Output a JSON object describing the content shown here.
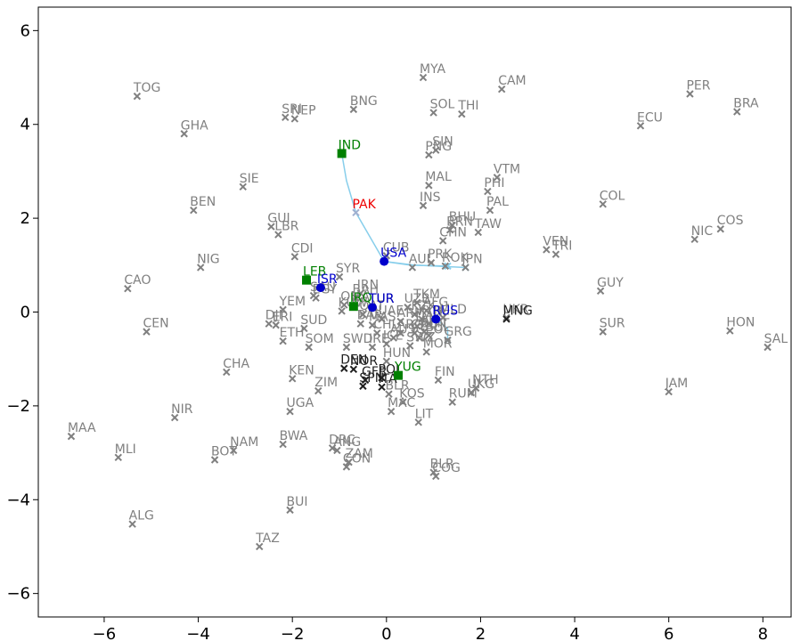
{
  "chart_data": {
    "type": "scatter",
    "title": "",
    "xlabel": "",
    "ylabel": "",
    "xlim": [
      -7.4,
      8.6
    ],
    "ylim": [
      -6.5,
      6.5
    ],
    "xticks": [
      -6,
      -4,
      -2,
      0,
      2,
      4,
      6,
      8
    ],
    "yticks": [
      -6,
      -4,
      -2,
      0,
      2,
      4,
      6
    ],
    "grid": false,
    "colors": {
      "gray": "#808080",
      "dark": "#202020",
      "green": "#008000",
      "blue": "#0000cc",
      "red": "#ee0000",
      "trajectory": "#87ceeb"
    },
    "points": [
      {
        "label": "TOG",
        "x": -5.3,
        "y": 4.6,
        "style": "gray"
      },
      {
        "label": "GHA",
        "x": -4.3,
        "y": 3.8,
        "style": "gray"
      },
      {
        "label": "SRI",
        "x": -2.15,
        "y": 4.15,
        "style": "gray"
      },
      {
        "label": "NEP",
        "x": -1.95,
        "y": 4.12,
        "style": "gray"
      },
      {
        "label": "BNG",
        "x": -0.7,
        "y": 4.32,
        "style": "gray"
      },
      {
        "label": "MYA",
        "x": 0.78,
        "y": 5.0,
        "style": "gray"
      },
      {
        "label": "CAM",
        "x": 2.45,
        "y": 4.75,
        "style": "gray"
      },
      {
        "label": "SOL",
        "x": 1.0,
        "y": 4.25,
        "style": "gray"
      },
      {
        "label": "THI",
        "x": 1.6,
        "y": 4.22,
        "style": "gray"
      },
      {
        "label": "PER",
        "x": 6.45,
        "y": 4.65,
        "style": "gray"
      },
      {
        "label": "BRA",
        "x": 7.45,
        "y": 4.27,
        "style": "gray"
      },
      {
        "label": "ECU",
        "x": 5.4,
        "y": 3.97,
        "style": "gray"
      },
      {
        "label": "SIN",
        "x": 1.05,
        "y": 3.45,
        "style": "gray"
      },
      {
        "label": "PNG",
        "x": 0.9,
        "y": 3.35,
        "style": "gray"
      },
      {
        "label": "VTM",
        "x": 2.35,
        "y": 2.87,
        "style": "gray"
      },
      {
        "label": "MAL",
        "x": 0.9,
        "y": 2.7,
        "style": "gray"
      },
      {
        "label": "PHI",
        "x": 2.15,
        "y": 2.57,
        "style": "gray"
      },
      {
        "label": "SIE",
        "x": -3.05,
        "y": 2.67,
        "style": "gray"
      },
      {
        "label": "INS",
        "x": 0.78,
        "y": 2.27,
        "style": "gray"
      },
      {
        "label": "PAL",
        "x": 2.2,
        "y": 2.17,
        "style": "gray"
      },
      {
        "label": "BEN",
        "x": -4.1,
        "y": 2.17,
        "style": "gray"
      },
      {
        "label": "COL",
        "x": 4.6,
        "y": 2.3,
        "style": "gray"
      },
      {
        "label": "COS",
        "x": 7.1,
        "y": 1.77,
        "style": "gray"
      },
      {
        "label": "NIC",
        "x": 6.55,
        "y": 1.55,
        "style": "gray"
      },
      {
        "label": "BHU",
        "x": 1.4,
        "y": 1.85,
        "style": "gray"
      },
      {
        "label": "BRN",
        "x": 1.35,
        "y": 1.75,
        "style": "gray"
      },
      {
        "label": "TAW",
        "x": 1.95,
        "y": 1.7,
        "style": "gray"
      },
      {
        "label": "GUI",
        "x": -2.45,
        "y": 1.82,
        "style": "gray"
      },
      {
        "label": "LBR",
        "x": -2.3,
        "y": 1.65,
        "style": "gray"
      },
      {
        "label": "CHN",
        "x": 1.2,
        "y": 1.52,
        "style": "gray"
      },
      {
        "label": "VEN",
        "x": 3.4,
        "y": 1.33,
        "style": "gray"
      },
      {
        "label": "TRI",
        "x": 3.6,
        "y": 1.23,
        "style": "gray"
      },
      {
        "label": "CDI",
        "x": -1.95,
        "y": 1.18,
        "style": "gray"
      },
      {
        "label": "CUB",
        "x": 0.0,
        "y": 1.2,
        "style": "gray"
      },
      {
        "label": "AUL",
        "x": 0.55,
        "y": 0.95,
        "style": "gray"
      },
      {
        "label": "PRK",
        "x": 0.95,
        "y": 1.05,
        "style": "gray"
      },
      {
        "label": "ROK",
        "x": 1.25,
        "y": 0.98,
        "style": "gray"
      },
      {
        "label": "NIG",
        "x": -3.95,
        "y": 0.95,
        "style": "gray"
      },
      {
        "label": "SYR",
        "x": -1.0,
        "y": 0.75,
        "style": "gray"
      },
      {
        "label": "CAO",
        "x": -5.5,
        "y": 0.5,
        "style": "gray"
      },
      {
        "label": "GUY",
        "x": 4.55,
        "y": 0.45,
        "style": "gray"
      },
      {
        "label": "SAU",
        "x": -1.55,
        "y": 0.35,
        "style": "gray"
      },
      {
        "label": "EGY",
        "x": -1.5,
        "y": 0.3,
        "style": "gray"
      },
      {
        "label": "IRN",
        "x": -0.55,
        "y": 0.4,
        "style": "gray"
      },
      {
        "label": "BAH",
        "x": -0.65,
        "y": 0.3,
        "style": "gray"
      },
      {
        "label": "OMA",
        "x": -0.9,
        "y": 0.15,
        "style": "gray"
      },
      {
        "label": "TKM",
        "x": 0.65,
        "y": 0.2,
        "style": "gray"
      },
      {
        "label": "UZB",
        "x": 0.45,
        "y": 0.1,
        "style": "gray"
      },
      {
        "label": "AFG",
        "x": 0.85,
        "y": 0.03,
        "style": "gray"
      },
      {
        "label": "YEM",
        "x": -2.2,
        "y": 0.05,
        "style": "gray"
      },
      {
        "label": "KUW",
        "x": -0.95,
        "y": 0.02,
        "style": "gray"
      },
      {
        "label": "DJI",
        "x": -2.5,
        "y": -0.25,
        "style": "gray"
      },
      {
        "label": "ERI",
        "x": -2.35,
        "y": -0.28,
        "style": "gray"
      },
      {
        "label": "QAT",
        "x": -0.5,
        "y": -0.05,
        "style": "gray"
      },
      {
        "label": "KZK",
        "x": 0.6,
        "y": -0.05,
        "style": "gray"
      },
      {
        "label": "UAE",
        "x": -0.1,
        "y": -0.15,
        "style": "gray"
      },
      {
        "label": "ARM",
        "x": 0.3,
        "y": -0.2,
        "style": "gray"
      },
      {
        "label": "KYR",
        "x": 0.75,
        "y": -0.15,
        "style": "gray"
      },
      {
        "label": "MLD",
        "x": 1.2,
        "y": -0.12,
        "style": "gray"
      },
      {
        "label": "AZE",
        "x": 0.9,
        "y": -0.25,
        "style": "gray"
      },
      {
        "label": "TAJ",
        "x": 0.65,
        "y": -0.3,
        "style": "gray"
      },
      {
        "label": "BAR",
        "x": -0.55,
        "y": -0.25,
        "style": "gray"
      },
      {
        "label": "MAS",
        "x": -0.3,
        "y": -0.28,
        "style": "gray"
      },
      {
        "label": "SUD",
        "x": -1.75,
        "y": -0.35,
        "style": "gray"
      },
      {
        "label": "ETH",
        "x": -2.2,
        "y": -0.62,
        "style": "gray"
      },
      {
        "label": "CHL",
        "x": -0.2,
        "y": -0.45,
        "style": "gray"
      },
      {
        "label": "ARG",
        "x": 0.3,
        "y": -0.45,
        "style": "gray"
      },
      {
        "label": "AUS",
        "x": 0.15,
        "y": -0.55,
        "style": "gray"
      },
      {
        "label": "CRO",
        "x": 0.6,
        "y": -0.45,
        "style": "gray"
      },
      {
        "label": "BEN",
        "x": 0.8,
        "y": -0.42,
        "style": "gray"
      },
      {
        "label": "GEO",
        "x": 0.7,
        "y": -0.55,
        "style": "gray"
      },
      {
        "label": "BUL",
        "x": 0.9,
        "y": -0.5,
        "style": "gray"
      },
      {
        "label": "SOM",
        "x": -1.65,
        "y": -0.75,
        "style": "gray"
      },
      {
        "label": "SWD",
        "x": -0.85,
        "y": -0.75,
        "style": "gray"
      },
      {
        "label": "IRE",
        "x": -0.3,
        "y": -0.75,
        "style": "gray"
      },
      {
        "label": "ICE",
        "x": 0.0,
        "y": -0.68,
        "style": "gray"
      },
      {
        "label": "SWZ",
        "x": 0.5,
        "y": -0.72,
        "style": "gray"
      },
      {
        "label": "MOR",
        "x": 0.85,
        "y": -0.85,
        "style": "gray"
      },
      {
        "label": "HUN",
        "x": 0.0,
        "y": -1.05,
        "style": "gray"
      },
      {
        "label": "SUR",
        "x": 4.6,
        "y": -0.42,
        "style": "gray"
      },
      {
        "label": "HON",
        "x": 7.3,
        "y": -0.4,
        "style": "gray"
      },
      {
        "label": "SAL",
        "x": 8.1,
        "y": -0.75,
        "style": "gray"
      },
      {
        "label": "UKR",
        "x": 2.55,
        "y": -0.12,
        "style": "gray"
      },
      {
        "label": "GRG",
        "x": 1.3,
        "y": -0.6,
        "style": "gray"
      },
      {
        "label": "CEN",
        "x": -5.1,
        "y": -0.42,
        "style": "gray"
      },
      {
        "label": "CHA",
        "x": -3.4,
        "y": -1.28,
        "style": "gray"
      },
      {
        "label": "KEN",
        "x": -2.0,
        "y": -1.42,
        "style": "gray"
      },
      {
        "label": "ZIM",
        "x": -1.45,
        "y": -1.68,
        "style": "gray"
      },
      {
        "label": "FIN",
        "x": 1.1,
        "y": -1.45,
        "style": "gray"
      },
      {
        "label": "UKG",
        "x": 1.8,
        "y": -1.72,
        "style": "gray"
      },
      {
        "label": "NTH",
        "x": 1.9,
        "y": -1.62,
        "style": "gray"
      },
      {
        "label": "RUM",
        "x": 1.4,
        "y": -1.92,
        "style": "gray"
      },
      {
        "label": "BLR",
        "x": 0.05,
        "y": -1.75,
        "style": "gray"
      },
      {
        "label": "KOS",
        "x": 0.35,
        "y": -1.92,
        "style": "gray"
      },
      {
        "label": "MAC",
        "x": 0.1,
        "y": -2.12,
        "style": "gray"
      },
      {
        "label": "LIT",
        "x": 0.68,
        "y": -2.35,
        "style": "gray"
      },
      {
        "label": "JAM",
        "x": 6.0,
        "y": -1.7,
        "style": "gray"
      },
      {
        "label": "UGA",
        "x": -2.05,
        "y": -2.12,
        "style": "gray"
      },
      {
        "label": "NIR",
        "x": -4.5,
        "y": -2.25,
        "style": "gray"
      },
      {
        "label": "MAA",
        "x": -6.7,
        "y": -2.65,
        "style": "gray"
      },
      {
        "label": "MLI",
        "x": -5.7,
        "y": -3.1,
        "style": "gray"
      },
      {
        "label": "BOT",
        "x": -3.65,
        "y": -3.15,
        "style": "gray"
      },
      {
        "label": "NAM",
        "x": -3.25,
        "y": -2.95,
        "style": "gray"
      },
      {
        "label": "BWA",
        "x": -2.2,
        "y": -2.82,
        "style": "gray"
      },
      {
        "label": "DRC",
        "x": -1.15,
        "y": -2.9,
        "style": "gray"
      },
      {
        "label": "ANG",
        "x": -1.05,
        "y": -2.95,
        "style": "gray"
      },
      {
        "label": "ZAM",
        "x": -0.8,
        "y": -3.2,
        "style": "gray"
      },
      {
        "label": "CON",
        "x": -0.85,
        "y": -3.3,
        "style": "gray"
      },
      {
        "label": "BLR",
        "x": 1.0,
        "y": -3.42,
        "style": "gray"
      },
      {
        "label": "COG",
        "x": 1.05,
        "y": -3.5,
        "style": "gray"
      },
      {
        "label": "BUI",
        "x": -2.05,
        "y": -4.22,
        "style": "gray"
      },
      {
        "label": "ALG",
        "x": -5.4,
        "y": -4.52,
        "style": "gray"
      },
      {
        "label": "TAZ",
        "x": -2.7,
        "y": -5.0,
        "style": "gray"
      },
      {
        "label": "JPN",
        "x": 1.68,
        "y": 0.95,
        "style": "gray"
      },
      {
        "label": "DEN",
        "x": -0.9,
        "y": -1.2,
        "style": "dark"
      },
      {
        "label": "NOR",
        "x": -0.7,
        "y": -1.22,
        "style": "dark"
      },
      {
        "label": "POL",
        "x": -0.1,
        "y": -1.4,
        "style": "dark"
      },
      {
        "label": "GFR",
        "x": -0.45,
        "y": -1.45,
        "style": "dark"
      },
      {
        "label": "SPN",
        "x": -0.5,
        "y": -1.58,
        "style": "dark"
      },
      {
        "label": "ITA",
        "x": -0.1,
        "y": -1.6,
        "style": "dark"
      },
      {
        "label": "MNG",
        "x": 2.55,
        "y": -0.15,
        "style": "dark"
      },
      {
        "label": "TUR",
        "x": -0.3,
        "y": 0.1,
        "style": "dark"
      },
      {
        "label": "IND",
        "x": -0.95,
        "y": 3.38,
        "style": "green"
      },
      {
        "label": "LEB",
        "x": -1.7,
        "y": 0.68,
        "style": "green"
      },
      {
        "label": "IRQ",
        "x": -0.7,
        "y": 0.12,
        "style": "green"
      },
      {
        "label": "YUG",
        "x": 0.25,
        "y": -1.35,
        "style": "green"
      },
      {
        "label": "USA",
        "x": -0.05,
        "y": 1.08,
        "style": "blue"
      },
      {
        "label": "ISR",
        "x": -1.4,
        "y": 0.52,
        "style": "blue"
      },
      {
        "label": "TUR",
        "x": -0.3,
        "y": 0.1,
        "style": "blue"
      },
      {
        "label": "RUS",
        "x": 1.05,
        "y": -0.15,
        "style": "blue"
      },
      {
        "label": "PAK",
        "x": -0.65,
        "y": 2.12,
        "style": "red"
      }
    ],
    "trajectories": [
      {
        "x": [
          -0.95,
          -0.85,
          -0.65,
          -0.05
        ],
        "y": [
          3.38,
          2.8,
          2.12,
          1.08
        ]
      },
      {
        "x": [
          -0.05,
          0.5,
          1.3
        ],
        "y": [
          1.08,
          1.0,
          0.98
        ]
      },
      {
        "x": [
          -0.05,
          0.6,
          1.68
        ],
        "y": [
          1.08,
          1.0,
          0.95
        ]
      },
      {
        "x": [
          1.05,
          1.3,
          1.3
        ],
        "y": [
          -0.15,
          -0.35,
          -0.6
        ]
      }
    ]
  }
}
